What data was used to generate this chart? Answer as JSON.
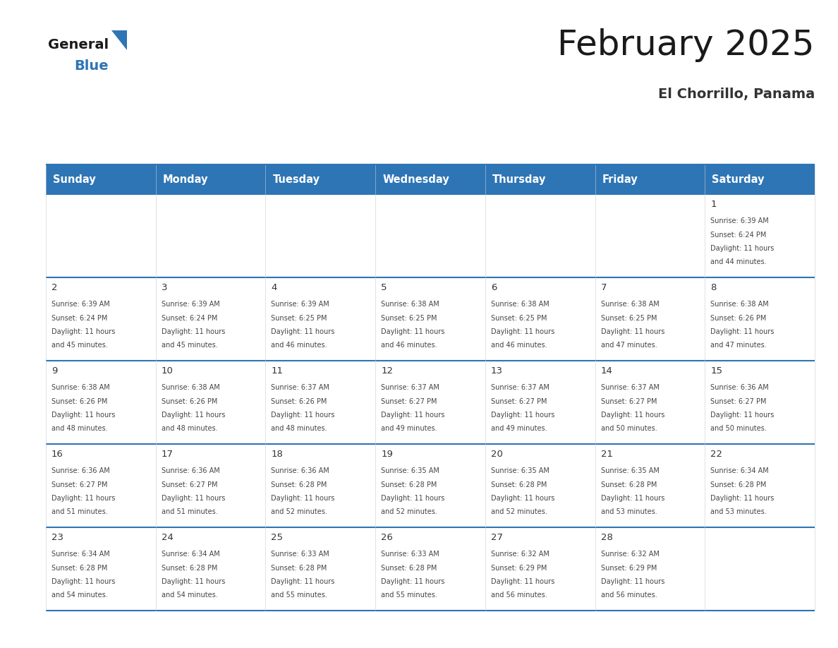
{
  "title": "February 2025",
  "subtitle": "El Chorrillo, Panama",
  "header_bg": "#2E75B6",
  "header_text_color": "#FFFFFF",
  "cell_bg": "#FFFFFF",
  "day_headers": [
    "Sunday",
    "Monday",
    "Tuesday",
    "Wednesday",
    "Thursday",
    "Friday",
    "Saturday"
  ],
  "border_color": "#2E75B6",
  "day_num_color": "#333333",
  "info_color": "#444444",
  "calendar": [
    [
      null,
      null,
      null,
      null,
      null,
      null,
      {
        "day": 1,
        "sunrise": "6:39 AM",
        "sunset": "6:24 PM",
        "daylight": "11 hours and 44 minutes."
      }
    ],
    [
      {
        "day": 2,
        "sunrise": "6:39 AM",
        "sunset": "6:24 PM",
        "daylight": "11 hours and 45 minutes."
      },
      {
        "day": 3,
        "sunrise": "6:39 AM",
        "sunset": "6:24 PM",
        "daylight": "11 hours and 45 minutes."
      },
      {
        "day": 4,
        "sunrise": "6:39 AM",
        "sunset": "6:25 PM",
        "daylight": "11 hours and 46 minutes."
      },
      {
        "day": 5,
        "sunrise": "6:38 AM",
        "sunset": "6:25 PM",
        "daylight": "11 hours and 46 minutes."
      },
      {
        "day": 6,
        "sunrise": "6:38 AM",
        "sunset": "6:25 PM",
        "daylight": "11 hours and 46 minutes."
      },
      {
        "day": 7,
        "sunrise": "6:38 AM",
        "sunset": "6:25 PM",
        "daylight": "11 hours and 47 minutes."
      },
      {
        "day": 8,
        "sunrise": "6:38 AM",
        "sunset": "6:26 PM",
        "daylight": "11 hours and 47 minutes."
      }
    ],
    [
      {
        "day": 9,
        "sunrise": "6:38 AM",
        "sunset": "6:26 PM",
        "daylight": "11 hours and 48 minutes."
      },
      {
        "day": 10,
        "sunrise": "6:38 AM",
        "sunset": "6:26 PM",
        "daylight": "11 hours and 48 minutes."
      },
      {
        "day": 11,
        "sunrise": "6:37 AM",
        "sunset": "6:26 PM",
        "daylight": "11 hours and 48 minutes."
      },
      {
        "day": 12,
        "sunrise": "6:37 AM",
        "sunset": "6:27 PM",
        "daylight": "11 hours and 49 minutes."
      },
      {
        "day": 13,
        "sunrise": "6:37 AM",
        "sunset": "6:27 PM",
        "daylight": "11 hours and 49 minutes."
      },
      {
        "day": 14,
        "sunrise": "6:37 AM",
        "sunset": "6:27 PM",
        "daylight": "11 hours and 50 minutes."
      },
      {
        "day": 15,
        "sunrise": "6:36 AM",
        "sunset": "6:27 PM",
        "daylight": "11 hours and 50 minutes."
      }
    ],
    [
      {
        "day": 16,
        "sunrise": "6:36 AM",
        "sunset": "6:27 PM",
        "daylight": "11 hours and 51 minutes."
      },
      {
        "day": 17,
        "sunrise": "6:36 AM",
        "sunset": "6:27 PM",
        "daylight": "11 hours and 51 minutes."
      },
      {
        "day": 18,
        "sunrise": "6:36 AM",
        "sunset": "6:28 PM",
        "daylight": "11 hours and 52 minutes."
      },
      {
        "day": 19,
        "sunrise": "6:35 AM",
        "sunset": "6:28 PM",
        "daylight": "11 hours and 52 minutes."
      },
      {
        "day": 20,
        "sunrise": "6:35 AM",
        "sunset": "6:28 PM",
        "daylight": "11 hours and 52 minutes."
      },
      {
        "day": 21,
        "sunrise": "6:35 AM",
        "sunset": "6:28 PM",
        "daylight": "11 hours and 53 minutes."
      },
      {
        "day": 22,
        "sunrise": "6:34 AM",
        "sunset": "6:28 PM",
        "daylight": "11 hours and 53 minutes."
      }
    ],
    [
      {
        "day": 23,
        "sunrise": "6:34 AM",
        "sunset": "6:28 PM",
        "daylight": "11 hours and 54 minutes."
      },
      {
        "day": 24,
        "sunrise": "6:34 AM",
        "sunset": "6:28 PM",
        "daylight": "11 hours and 54 minutes."
      },
      {
        "day": 25,
        "sunrise": "6:33 AM",
        "sunset": "6:28 PM",
        "daylight": "11 hours and 55 minutes."
      },
      {
        "day": 26,
        "sunrise": "6:33 AM",
        "sunset": "6:28 PM",
        "daylight": "11 hours and 55 minutes."
      },
      {
        "day": 27,
        "sunrise": "6:32 AM",
        "sunset": "6:29 PM",
        "daylight": "11 hours and 56 minutes."
      },
      {
        "day": 28,
        "sunrise": "6:32 AM",
        "sunset": "6:29 PM",
        "daylight": "11 hours and 56 minutes."
      },
      null
    ]
  ],
  "logo_general_color": "#1a1a1a",
  "logo_blue_color": "#2E75B6",
  "logo_triangle_color": "#2E75B6"
}
